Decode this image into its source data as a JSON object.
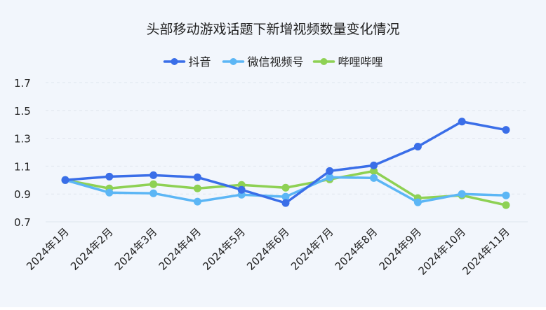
{
  "chart_data": {
    "type": "line",
    "title": "头部移动游戏话题下新增视频数量变化情况",
    "xlabel": "",
    "ylabel": "",
    "categories": [
      "2024年1月",
      "2024年2月",
      "2024年3月",
      "2024年4月",
      "2024年5月",
      "2024年6月",
      "2024年7月",
      "2024年8月",
      "2024年9月",
      "2024年10月",
      "2024年11月"
    ],
    "ylim": [
      0.7,
      1.7
    ],
    "yticks": [
      "0.7",
      "0.9",
      "1.1",
      "1.3",
      "1.5",
      "1.7"
    ],
    "grid": true,
    "legend_position": "top-center",
    "series": [
      {
        "name": "抖音",
        "color": "#3a6ee8",
        "values": [
          1.0,
          1.025,
          1.035,
          1.02,
          0.93,
          0.835,
          1.065,
          1.105,
          1.24,
          1.42,
          1.36
        ]
      },
      {
        "name": "微信视频号",
        "color": "#5cb6f5",
        "values": [
          1.0,
          0.91,
          0.905,
          0.845,
          0.895,
          0.88,
          1.02,
          1.015,
          0.84,
          0.9,
          0.89
        ]
      },
      {
        "name": "哔哩哔哩",
        "color": "#8ed154",
        "values": [
          1.0,
          0.94,
          0.97,
          0.94,
          0.965,
          0.945,
          1.005,
          1.065,
          0.87,
          0.89,
          0.82
        ]
      }
    ]
  }
}
